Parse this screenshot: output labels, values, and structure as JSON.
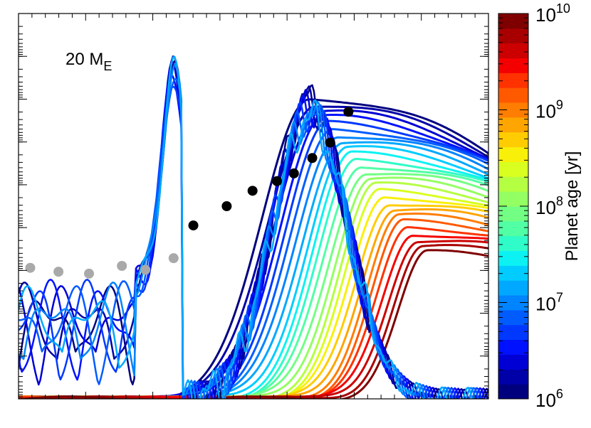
{
  "chart_data": {
    "type": "line",
    "title": "",
    "xlabel": "",
    "ylabel": "",
    "annotation": {
      "text": "20 M",
      "subscript": "E"
    },
    "x_range": [
      0,
      1
    ],
    "y_range": [
      0,
      1
    ],
    "x_tick_count": 35,
    "y_ticks_major": 9,
    "grid": false,
    "legend": "none",
    "colorbar": {
      "label": "Planet age [yr]",
      "scale": "log",
      "range": [
        1000000,
        10000000000
      ],
      "tick_labels": [
        {
          "base": "10",
          "exp": "6",
          "value": 1000000
        },
        {
          "base": "10",
          "exp": "7",
          "value": 10000000
        },
        {
          "base": "10",
          "exp": "8",
          "value": 100000000
        },
        {
          "base": "10",
          "exp": "9",
          "value": 1000000000
        },
        {
          "base": "10",
          "exp": "10",
          "value": 10000000000
        }
      ],
      "colors": [
        "#00007f",
        "#0000a8",
        "#0000d4",
        "#0011ff",
        "#0038ff",
        "#005cff",
        "#0084ff",
        "#00a8ff",
        "#00ccff",
        "#0cf2f2",
        "#2ffcc8",
        "#51ffa5",
        "#72ff84",
        "#94ff62",
        "#b4ff42",
        "#d8ff1f",
        "#f9f00a",
        "#ffcc00",
        "#ffa500",
        "#ff7d00",
        "#ff5900",
        "#ff3200",
        "#f50000",
        "#cc0000",
        "#a80000",
        "#7f0000"
      ]
    },
    "series_note": "Each smooth curve corresponds to one planet age; colors follow the colorbar.",
    "black_points": [
      {
        "x": 0.372,
        "y": 0.45
      },
      {
        "x": 0.443,
        "y": 0.5
      },
      {
        "x": 0.498,
        "y": 0.54
      },
      {
        "x": 0.55,
        "y": 0.565
      },
      {
        "x": 0.586,
        "y": 0.585
      },
      {
        "x": 0.625,
        "y": 0.625
      },
      {
        "x": 0.663,
        "y": 0.665
      },
      {
        "x": 0.702,
        "y": 0.745
      }
    ],
    "gray_points": [
      {
        "x": 0.025,
        "y": 0.34
      },
      {
        "x": 0.085,
        "y": 0.33
      },
      {
        "x": 0.15,
        "y": 0.325
      },
      {
        "x": 0.22,
        "y": 0.345
      },
      {
        "x": 0.27,
        "y": 0.335
      },
      {
        "x": 0.33,
        "y": 0.365
      }
    ]
  }
}
